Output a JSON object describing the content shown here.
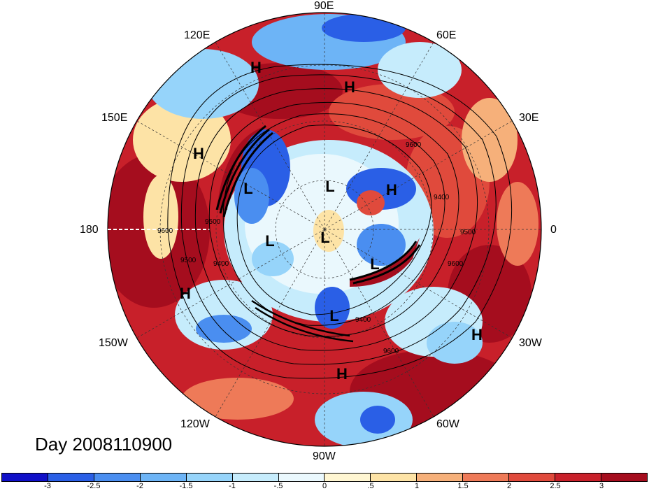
{
  "day_label": "Day 2008110900",
  "longitude_labels": {
    "lon_90e": "90E",
    "lon_60e": "60E",
    "lon_30e": "30E",
    "lon_0": "0",
    "lon_30w": "30W",
    "lon_60w": "60W",
    "lon_90w": "90W",
    "lon_120w": "120W",
    "lon_150w": "150W",
    "lon_180": "180",
    "lon_150e": "150E",
    "lon_120e": "120E"
  },
  "pressure_systems": [
    {
      "label": "H"
    },
    {
      "label": "H"
    },
    {
      "label": "H"
    },
    {
      "label": "H"
    },
    {
      "label": "H"
    },
    {
      "label": "H"
    },
    {
      "label": "H"
    },
    {
      "label": "L"
    },
    {
      "label": "L"
    },
    {
      "label": "L"
    },
    {
      "label": "L"
    },
    {
      "label": "L"
    },
    {
      "label": "L"
    }
  ],
  "contour_labels": [
    "9600",
    "9500",
    "9400",
    "9600",
    "9500",
    "9400",
    "9600",
    "9600",
    "9500",
    "9400"
  ],
  "colorbar": {
    "colors": [
      "#1010c8",
      "#2a5fe6",
      "#4a8ef0",
      "#6db4f6",
      "#96d4fa",
      "#c6ecfc",
      "#eaf8fd",
      "#fff6d2",
      "#fde3a6",
      "#f6b07a",
      "#ee7a58",
      "#e04a3c",
      "#c8202a",
      "#a50d1e"
    ],
    "ticks": [
      "-3",
      "-2.5",
      "-2",
      "-1.5",
      "-1",
      "-.5",
      "0",
      ".5",
      "1",
      "1.5",
      "2",
      "2.5",
      "3"
    ]
  }
}
